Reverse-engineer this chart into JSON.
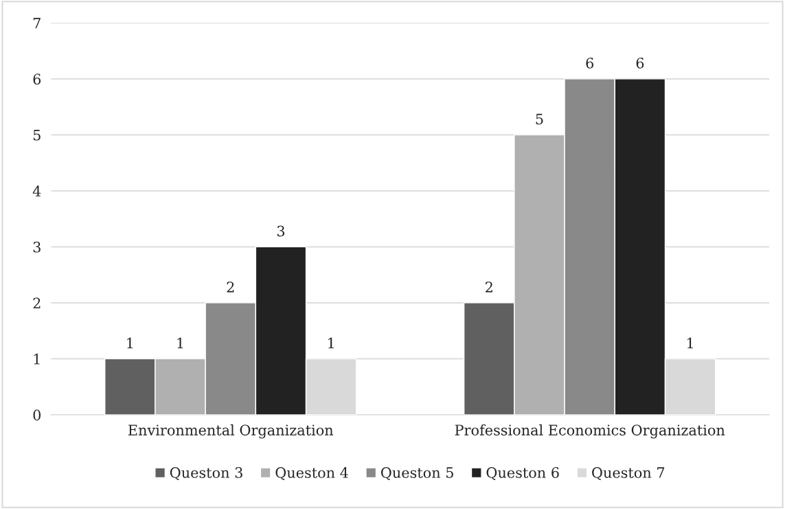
{
  "chart_data": {
    "type": "bar",
    "categories": [
      "Environmental Organization",
      "Professional Economics Organization"
    ],
    "series": [
      {
        "name": "Queston 3",
        "color": "#606060",
        "values": [
          1,
          2
        ]
      },
      {
        "name": "Queston 4",
        "color": "#b0b0b0",
        "values": [
          1,
          5
        ]
      },
      {
        "name": "Queston 5",
        "color": "#898989",
        "values": [
          2,
          6
        ]
      },
      {
        "name": "Queston 6",
        "color": "#222222",
        "values": [
          3,
          6
        ]
      },
      {
        "name": "Queston 7",
        "color": "#d9d9d9",
        "values": [
          1,
          1
        ]
      }
    ],
    "ylim": [
      0,
      7
    ],
    "yticks": [
      0,
      1,
      2,
      3,
      4,
      5,
      6,
      7
    ],
    "grid": "y",
    "legend": "bottom",
    "data_labels": true
  }
}
